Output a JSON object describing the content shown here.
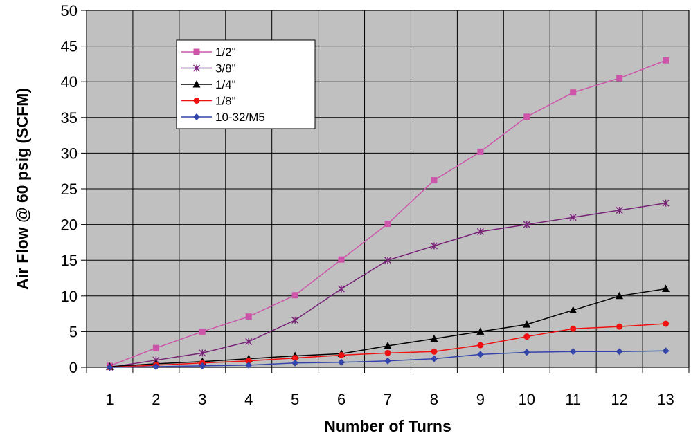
{
  "chart_data": {
    "type": "line",
    "title": "",
    "xlabel": "Number of Turns",
    "ylabel": "Air Flow @ 60 psig (SCFM)",
    "categories": [
      "1",
      "2",
      "3",
      "4",
      "5",
      "6",
      "7",
      "8",
      "9",
      "10",
      "11",
      "12",
      "13"
    ],
    "ylim": [
      0,
      50
    ],
    "yticks": [
      "0",
      "5",
      "10",
      "15",
      "20",
      "25",
      "30",
      "35",
      "40",
      "45",
      "50"
    ],
    "grid": true,
    "legend_position": "top-left",
    "plot_background": "#c0c0c0",
    "series": [
      {
        "name": "1/2\"",
        "color": "#cc55aa",
        "marker": "square",
        "values": [
          0.2,
          2.7,
          5,
          7.1,
          10.1,
          15.1,
          20.1,
          26.2,
          30.2,
          35.1,
          38.5,
          40.5,
          43
        ]
      },
      {
        "name": "3/8\"",
        "color": "#772277",
        "marker": "asterisk",
        "values": [
          0,
          1,
          2,
          3.6,
          6.6,
          11,
          15,
          17,
          19,
          20,
          21,
          22,
          23
        ]
      },
      {
        "name": "1/4\"",
        "color": "#000000",
        "marker": "triangle",
        "values": [
          0.1,
          0.5,
          0.8,
          1.2,
          1.6,
          1.9,
          3,
          4,
          5,
          6,
          8,
          10,
          11
        ]
      },
      {
        "name": "1/8\"",
        "color": "#ee1111",
        "marker": "circle",
        "values": [
          0,
          0.3,
          0.6,
          0.9,
          1.3,
          1.7,
          2,
          2.2,
          3.1,
          4.3,
          5.4,
          5.7,
          6.1
        ]
      },
      {
        "name": "10-32/M5",
        "color": "#3344aa",
        "marker": "diamond",
        "values": [
          0,
          0.1,
          0.2,
          0.3,
          0.6,
          0.7,
          0.9,
          1.2,
          1.8,
          2.1,
          2.2,
          2.2,
          2.3
        ]
      }
    ]
  }
}
